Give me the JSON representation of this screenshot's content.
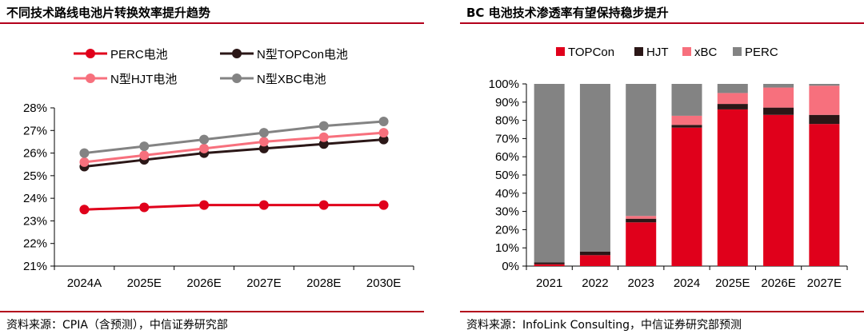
{
  "left": {
    "title": "不同技术路线电池片转换效率提升趋势",
    "source": "资料来源：CPIA（含预测），中信证券研究部",
    "chart_data": {
      "type": "line",
      "title": "不同技术路线电池片转换效率提升趋势",
      "categories": [
        "2024A",
        "2025E",
        "2026E",
        "2027E",
        "2028E",
        "2030E"
      ],
      "ylim": [
        21,
        28
      ],
      "yticks": [
        "21%",
        "22%",
        "23%",
        "24%",
        "25%",
        "26%",
        "27%",
        "28%"
      ],
      "grid": false,
      "legend_position": "top",
      "series": [
        {
          "name": "PERC电池",
          "color": "#e0001b",
          "values": [
            23.5,
            23.6,
            23.7,
            23.7,
            23.7,
            23.7
          ]
        },
        {
          "name": "N型TOPCon电池",
          "color": "#2b1717",
          "values": [
            25.4,
            25.7,
            26.0,
            26.2,
            26.4,
            26.6
          ]
        },
        {
          "name": "N型HJT电池",
          "color": "#f7707d",
          "values": [
            25.6,
            25.9,
            26.2,
            26.5,
            26.7,
            26.9
          ]
        },
        {
          "name": "N型XBC电池",
          "color": "#838383",
          "values": [
            26.0,
            26.3,
            26.6,
            26.9,
            27.2,
            27.4
          ]
        }
      ]
    }
  },
  "right": {
    "title": "BC 电池技术渗透率有望保持稳步提升",
    "source": "资料来源：InfoLink Consulting，中信证券研究部预测",
    "chart_data": {
      "type": "bar",
      "stacked": true,
      "title": "BC 电池技术渗透率有望保持稳步提升",
      "categories": [
        "2021",
        "2022",
        "2023",
        "2024",
        "2025E",
        "2026E",
        "2027E"
      ],
      "ylim": [
        0,
        100
      ],
      "yticks": [
        "0%",
        "10%",
        "20%",
        "30%",
        "40%",
        "50%",
        "60%",
        "70%",
        "80%",
        "90%",
        "100%"
      ],
      "grid": false,
      "legend_position": "top",
      "series": [
        {
          "name": "TOPCon",
          "color": "#e0001b",
          "values": [
            1,
            6,
            24,
            76,
            86,
            83,
            78
          ]
        },
        {
          "name": "HJT",
          "color": "#2b1717",
          "values": [
            1,
            2,
            2,
            1.5,
            3,
            4,
            5
          ]
        },
        {
          "name": "xBC",
          "color": "#f7707d",
          "values": [
            0,
            0,
            1.5,
            5,
            6,
            11,
            16
          ]
        },
        {
          "name": "PERC",
          "color": "#838383",
          "values": [
            98,
            92,
            72.5,
            17.5,
            5,
            2,
            1
          ]
        }
      ]
    }
  }
}
